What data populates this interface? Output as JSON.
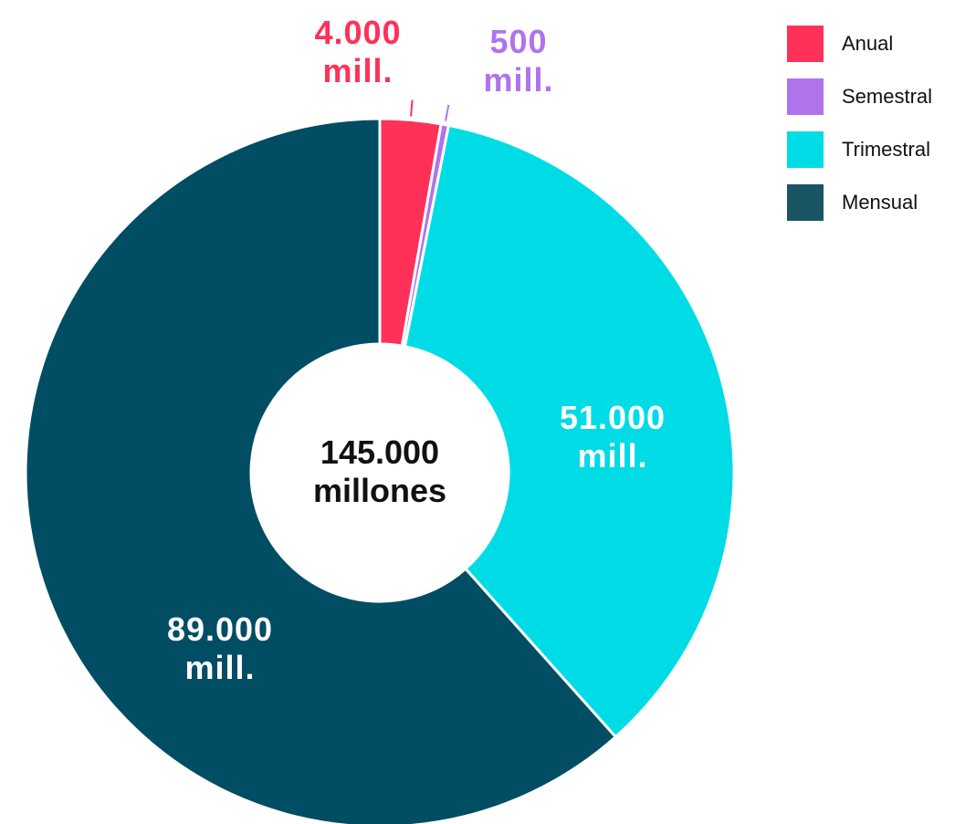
{
  "chart_data": {
    "type": "pie",
    "center_label": [
      "145.000",
      "millones"
    ],
    "slices": [
      {
        "name": "Anual",
        "value": 4000,
        "label": [
          "4.000",
          "mill."
        ],
        "color": "#FF3158",
        "label_color": "#FF3158",
        "label_position": "outside"
      },
      {
        "name": "Semestral",
        "value": 500,
        "label": [
          "500",
          "mill."
        ],
        "color": "#B073EB",
        "label_color": "#B073EB",
        "label_position": "outside"
      },
      {
        "name": "Trimestral",
        "value": 51000,
        "label": [
          "51.000",
          "mill."
        ],
        "color": "#00DCE6",
        "label_color": "#FFFFFF",
        "label_position": "inside"
      },
      {
        "name": "Mensual",
        "value": 89000,
        "label": [
          "89.000",
          "mill."
        ],
        "color": "#004D64",
        "label_color": "#FFFFFF",
        "label_position": "inside"
      }
    ],
    "legend": {
      "position": "top-right",
      "items": [
        {
          "label": "Anual",
          "color": "#FF3158"
        },
        {
          "label": "Semestral",
          "color": "#B073EB"
        },
        {
          "label": "Trimestral",
          "color": "#00DCE6"
        },
        {
          "label": "Mensual",
          "color": "#1A5566"
        }
      ]
    }
  }
}
